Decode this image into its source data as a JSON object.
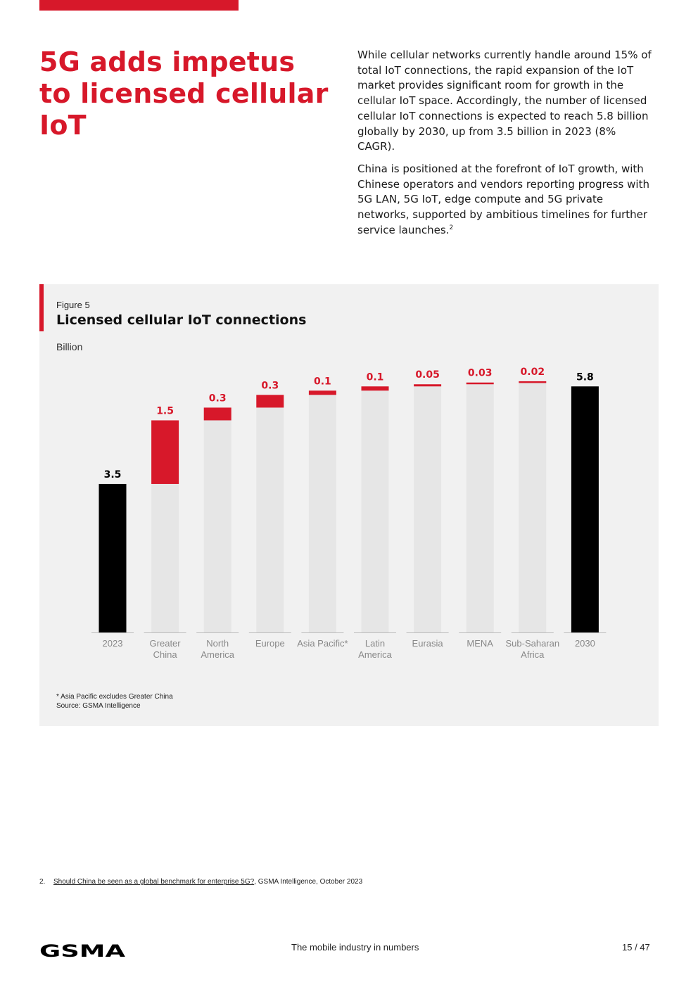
{
  "headline": "5G adds impetus to licensed cellular IoT",
  "intro": {
    "p1": "While cellular networks currently handle around 15% of total IoT connections, the rapid expansion of the IoT market provides significant room for growth in the cellular IoT space. Accordingly, the number of licensed cellular IoT connections is expected to reach 5.8 billion globally by 2030, up from 3.5 billion in 2023 (8% CAGR).",
    "p2": "China is positioned at the forefront of IoT growth, with Chinese operators and vendors reporting progress with 5G LAN, 5G IoT, edge compute and 5G private networks, supported by ambitious timelines for further service launches.",
    "p2_sup": "2"
  },
  "figure": {
    "label": "Figure 5",
    "title": "Licensed cellular IoT connections",
    "unit": "Billion",
    "note": "* Asia Pacific excludes Greater China",
    "source": "Source: GSMA Intelligence"
  },
  "chart_data": {
    "type": "bar",
    "subtype": "waterfall",
    "title": "Licensed cellular IoT connections",
    "ylabel": "Billion",
    "ylim": [
      0,
      5.8
    ],
    "categories": [
      {
        "lines": [
          "2023"
        ],
        "value": 3.5,
        "label": "3.5",
        "kind": "total"
      },
      {
        "lines": [
          "Greater",
          "China"
        ],
        "value": 1.5,
        "label": "1.5",
        "kind": "increment"
      },
      {
        "lines": [
          "North",
          "America"
        ],
        "value": 0.3,
        "label": "0.3",
        "kind": "increment"
      },
      {
        "lines": [
          "Europe"
        ],
        "value": 0.3,
        "label": "0.3",
        "kind": "increment"
      },
      {
        "lines": [
          "Asia Pacific*"
        ],
        "value": 0.1,
        "label": "0.1",
        "kind": "increment"
      },
      {
        "lines": [
          "Latin",
          "America"
        ],
        "value": 0.1,
        "label": "0.1",
        "kind": "increment"
      },
      {
        "lines": [
          "Eurasia"
        ],
        "value": 0.05,
        "label": "0.05",
        "kind": "increment"
      },
      {
        "lines": [
          "MENA"
        ],
        "value": 0.03,
        "label": "0.03",
        "kind": "increment"
      },
      {
        "lines": [
          "Sub-Saharan",
          "Africa"
        ],
        "value": 0.02,
        "label": "0.02",
        "kind": "increment"
      },
      {
        "lines": [
          "2030"
        ],
        "value": 5.8,
        "label": "5.8",
        "kind": "total"
      }
    ],
    "colors": {
      "total": "#000000",
      "increment": "#d7182a",
      "base": "#e6e6e6",
      "increment_label": "#d7182a",
      "total_label": "#000000",
      "axis_label": "#888888"
    }
  },
  "footnote": {
    "number": "2.",
    "link_text": "Should China be seen as a global benchmark for enterprise 5G?",
    "rest": ", GSMA Intelligence, October 2023"
  },
  "footer": {
    "logo_text": "GSMA",
    "tagline": "The mobile industry in numbers",
    "page": "15 / 47"
  }
}
